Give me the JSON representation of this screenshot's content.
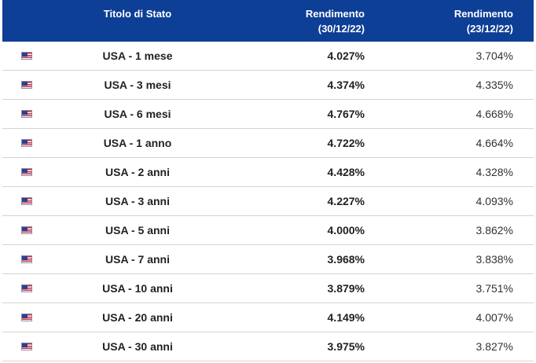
{
  "header": {
    "name_label": "Titolo di Stato",
    "yield1_label": "Rendimento",
    "yield1_date": "(30/12/22)",
    "yield2_label": "Rendimento",
    "yield2_date": "(23/12/22)"
  },
  "flag_icon": "us-flag-icon",
  "rows": [
    {
      "name": "USA - 1 mese",
      "y1": "4.027%",
      "y2": "3.704%"
    },
    {
      "name": "USA - 3 mesi",
      "y1": "4.374%",
      "y2": "4.335%"
    },
    {
      "name": "USA - 6 mesi",
      "y1": "4.767%",
      "y2": "4.668%"
    },
    {
      "name": "USA - 1 anno",
      "y1": "4.722%",
      "y2": "4.664%"
    },
    {
      "name": "USA - 2 anni",
      "y1": "4.428%",
      "y2": "4.328%"
    },
    {
      "name": "USA - 3 anni",
      "y1": "4.227%",
      "y2": "4.093%"
    },
    {
      "name": "USA - 5 anni",
      "y1": "4.000%",
      "y2": "3.862%"
    },
    {
      "name": "USA - 7 anni",
      "y1": "3.968%",
      "y2": "3.838%"
    },
    {
      "name": "USA - 10 anni",
      "y1": "3.879%",
      "y2": "3.751%"
    },
    {
      "name": "USA - 20 anni",
      "y1": "4.149%",
      "y2": "4.007%"
    },
    {
      "name": "USA - 30 anni",
      "y1": "3.975%",
      "y2": "3.827%"
    }
  ],
  "colors": {
    "header_bg": "#0e3f96",
    "header_text": "#ffffff",
    "row_divider": "#d4d4d4"
  }
}
